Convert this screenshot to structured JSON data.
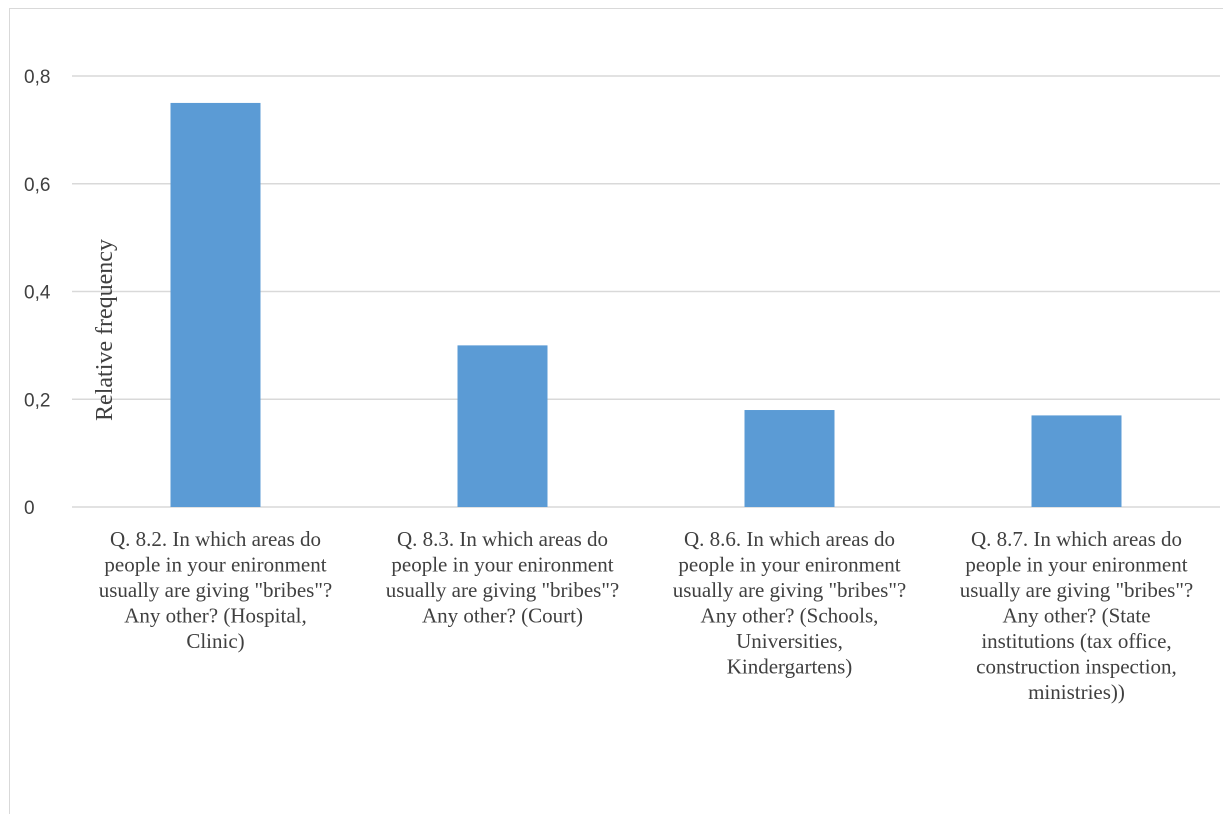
{
  "chart_data": {
    "type": "bar",
    "title": "",
    "xlabel": "",
    "ylabel": "Relative frequency",
    "ylim": [
      0,
      0.8
    ],
    "yticks": [
      0,
      0.2,
      0.4,
      0.6,
      0.8
    ],
    "ytick_labels": [
      "0",
      "0,2",
      "0,4",
      "0,6",
      "0,8"
    ],
    "grid": true,
    "legend": "none",
    "bar_color": "#5b9bd5",
    "categories": [
      "Q. 8.2. In which areas do people in your enironment usually are giving \"bribes\"? Any other? (Hospital, Clinic)",
      "Q. 8.3. In which areas do people in your enironment usually are giving \"bribes\"? Any other? (Court)",
      "Q. 8.6. In which areas do people in your enironment usually are giving \"bribes\"? Any other? (Schools, Universities, Kindergartens)",
      "Q. 8.7. In which areas do people in your enironment usually are giving \"bribes\"? Any other? (State institutions (tax office, construction inspection, ministries))"
    ],
    "category_lines": [
      [
        "Q. 8.2. In which areas do",
        "people in your enironment",
        "usually are giving \"bribes\"?",
        "Any other? (Hospital,",
        "Clinic)"
      ],
      [
        "Q. 8.3. In which areas do",
        "people in your enironment",
        "usually are giving \"bribes\"?",
        "Any other? (Court)"
      ],
      [
        "Q. 8.6. In which areas do",
        "people in your enironment",
        "usually are giving \"bribes\"?",
        "Any other? (Schools,",
        "Universities,",
        "Kindergartens)"
      ],
      [
        "Q. 8.7. In which areas do",
        "people in your enironment",
        "usually are giving \"bribes\"?",
        "Any other? (State",
        "institutions (tax office,",
        "construction inspection,",
        "ministries))"
      ]
    ],
    "values": [
      0.75,
      0.3,
      0.18,
      0.17
    ]
  }
}
